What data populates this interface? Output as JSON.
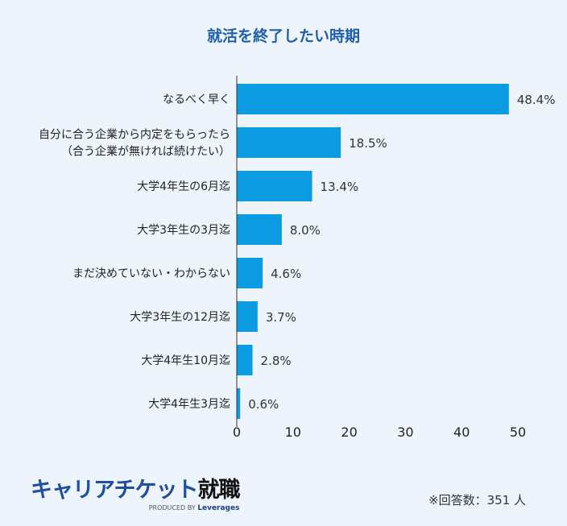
{
  "title": "就活を終了したい時期",
  "chart_data": {
    "type": "bar",
    "orientation": "horizontal",
    "categories": [
      "なるべく早く",
      "自分に合う企業から内定をもらったら\n（合う企業が無ければ続けたい）",
      "大学4年生の6月迄",
      "大学3年生の3月迄",
      "まだ決めていない・わからない",
      "大学3年生の12月迄",
      "大学4年生10月迄",
      "大学4年生3月迄"
    ],
    "values": [
      48.4,
      18.5,
      13.4,
      8.0,
      4.6,
      3.7,
      2.8,
      0.6
    ],
    "data_labels": [
      "48.4%",
      "18.5%",
      "13.4%",
      "8.0%",
      "4.6%",
      "3.7%",
      "2.8%",
      "0.6%"
    ],
    "xlim": [
      0,
      50
    ],
    "xticks": [
      "0",
      "10",
      "20",
      "30",
      "40",
      "50"
    ],
    "grid": false,
    "bar_color": "#0a9be0"
  },
  "logo": {
    "main": "キャリアチケット",
    "main_bold": "就職",
    "sub": "PRODUCED BY",
    "sub_brand": "Leverages"
  },
  "note": "※回答数：351 人"
}
